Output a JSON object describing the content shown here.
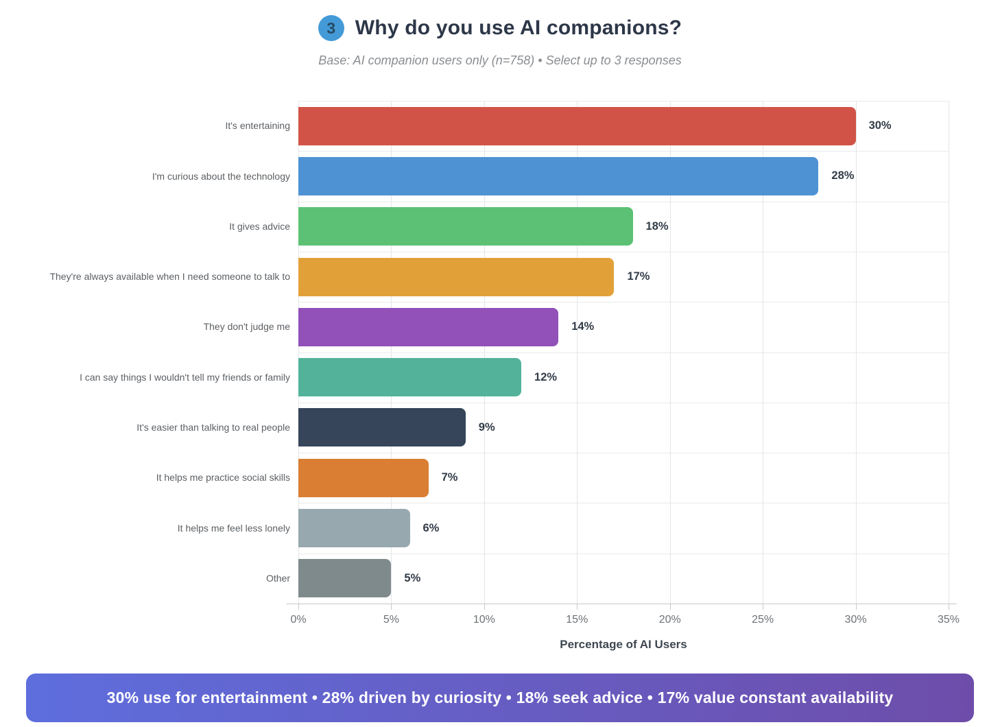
{
  "header": {
    "badge": "3",
    "title": "Why do you use AI companions?",
    "subtitle": "Base: AI companion users only (n=758) • Select up to 3 responses"
  },
  "chart_data": {
    "type": "bar",
    "orientation": "horizontal",
    "title": "Why do you use AI companions?",
    "categories": [
      "It's entertaining",
      "I'm curious about the technology",
      "It gives advice",
      "They're always available when I need someone to talk to",
      "They don't judge me",
      "I can say things I wouldn't tell my friends or family",
      "It's easier than talking to real people",
      "It helps me practice social skills",
      "It helps me feel less lonely",
      "Other"
    ],
    "values": [
      30,
      28,
      18,
      17,
      14,
      12,
      9,
      7,
      6,
      5
    ],
    "value_labels": [
      "30%",
      "28%",
      "18%",
      "17%",
      "14%",
      "12%",
      "9%",
      "7%",
      "6%",
      "5%"
    ],
    "bar_colors": [
      "#d15347",
      "#4e92d3",
      "#5cc174",
      "#e2a138",
      "#9151b9",
      "#52b39a",
      "#36455a",
      "#d97e33",
      "#97a8af",
      "#7f8a8c"
    ],
    "xlabel": "Percentage of AI Users",
    "ylabel": "",
    "xlim": [
      0,
      35
    ],
    "xticks": [
      "0%",
      "5%",
      "10%",
      "15%",
      "20%",
      "25%",
      "30%",
      "35%"
    ],
    "grid": true,
    "legend": "none"
  },
  "footer": {
    "summary": "30% use for entertainment • 28% driven by curiosity • 18% seek advice • 17% value constant availability",
    "gradient_left": "#5e6edd",
    "gradient_right": "#6e4daa"
  }
}
